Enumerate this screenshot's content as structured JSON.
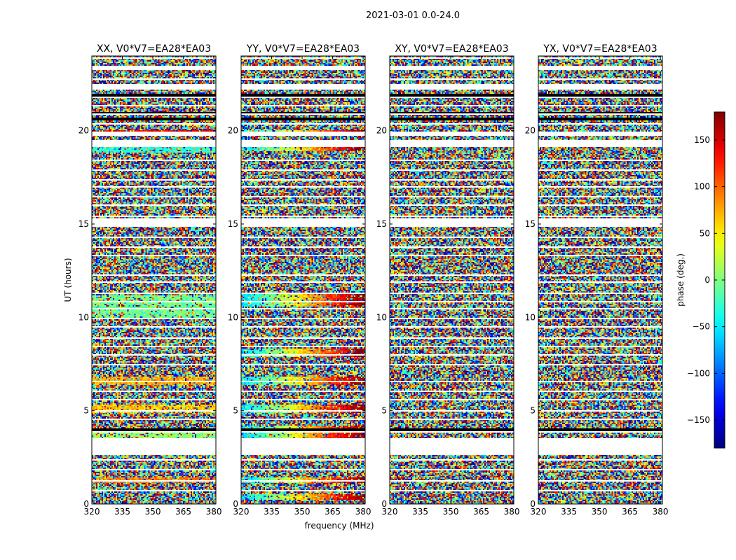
{
  "figure": {
    "suptitle": "2021-03-01 0.0-24.0",
    "shared_xlabel": "frequency (MHz)",
    "shared_ylabel": "UT (hours)"
  },
  "colorbar": {
    "label": "phase (deg.)",
    "range": [
      -180,
      180
    ],
    "ticks": [
      "150",
      "100",
      "50",
      "0",
      "−50",
      "−100",
      "−150"
    ],
    "tick_values": [
      150,
      100,
      50,
      0,
      -50,
      -100,
      -150
    ],
    "colormap": "jet"
  },
  "chart_data": [
    {
      "type": "heatmap",
      "title": "XX, V0*V7=EA28*EA03",
      "xlim": [
        320,
        381
      ],
      "ylim": [
        0,
        24
      ],
      "xticks": [
        320,
        335,
        350,
        365,
        380
      ],
      "yticks": [
        0,
        5,
        10,
        15,
        20
      ],
      "style": "xx"
    },
    {
      "type": "heatmap",
      "title": "YY, V0*V7=EA28*EA03",
      "xlim": [
        320,
        381
      ],
      "ylim": [
        0,
        24
      ],
      "xticks": [
        320,
        335,
        350,
        365,
        380
      ],
      "yticks": [
        0,
        5,
        10,
        15,
        20
      ],
      "style": "yy"
    },
    {
      "type": "heatmap",
      "title": "XY, V0*V7=EA28*EA03",
      "xlim": [
        320,
        381
      ],
      "ylim": [
        0,
        24
      ],
      "xticks": [
        320,
        335,
        350,
        365,
        380
      ],
      "yticks": [
        0,
        5,
        10,
        15,
        20
      ],
      "style": "noise"
    },
    {
      "type": "heatmap",
      "title": "YX, V0*V7=EA28*EA03",
      "xlim": [
        320,
        381
      ],
      "ylim": [
        0,
        24
      ],
      "xticks": [
        320,
        335,
        350,
        365,
        380
      ],
      "yticks": [
        0,
        5,
        10,
        15,
        20
      ],
      "style": "noise"
    }
  ]
}
